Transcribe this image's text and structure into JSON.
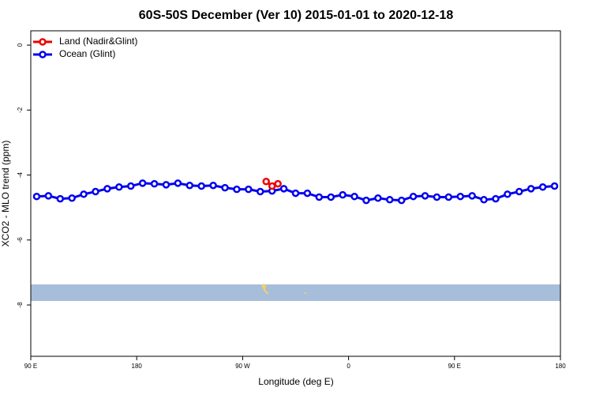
{
  "chart_data": {
    "type": "line",
    "title": "60S-50S December (Ver 10)   2015-01-01 to 2020-12-18",
    "x_label": "Longitude (deg E)",
    "y_label": "XCO2 - MLO trend (ppm)",
    "xlim": [
      90,
      540
    ],
    "xticks": [
      {
        "value": 90,
        "label": "90 E"
      },
      180,
      {
        "value": 270,
        "label": "90 W"
      },
      {
        "value": 360,
        "label": "0"
      },
      {
        "value": 450,
        "label": "90 E"
      },
      {
        "value": 540,
        "label": "180"
      }
    ],
    "ylim": [
      -9.58,
      0.44
    ],
    "yticks": [
      0,
      -2,
      -4,
      -6,
      -8
    ],
    "legend": "top-left",
    "series": [
      {
        "name": "Land (Nadir&Glint)",
        "color": "#ee0000",
        "x": [
          290,
          295,
          300
        ],
        "values": [
          -4.2,
          -4.34,
          -4.27
        ]
      },
      {
        "name": "Ocean (Glint)",
        "color": "#0000ee",
        "x": [
          95,
          105,
          115,
          125,
          135,
          145,
          155,
          165,
          175,
          185,
          195,
          205,
          215,
          225,
          235,
          245,
          255,
          265,
          275,
          285,
          295,
          305,
          315,
          325,
          335,
          345,
          355,
          365,
          375,
          385,
          395,
          405,
          415,
          425,
          435,
          445,
          455,
          465,
          475,
          485,
          495,
          505,
          515,
          525,
          535
        ],
        "values": [
          -4.66,
          -4.64,
          -4.73,
          -4.71,
          -4.59,
          -4.51,
          -4.42,
          -4.37,
          -4.34,
          -4.25,
          -4.27,
          -4.3,
          -4.25,
          -4.32,
          -4.34,
          -4.32,
          -4.39,
          -4.44,
          -4.44,
          -4.51,
          -4.49,
          -4.42,
          -4.56,
          -4.56,
          -4.68,
          -4.68,
          -4.61,
          -4.66,
          -4.78,
          -4.71,
          -4.76,
          -4.78,
          -4.66,
          -4.64,
          -4.68,
          -4.68,
          -4.66,
          -4.64,
          -4.76,
          -4.73,
          -4.59,
          -4.51,
          -4.42,
          -4.37,
          -4.34
        ]
      }
    ]
  }
}
